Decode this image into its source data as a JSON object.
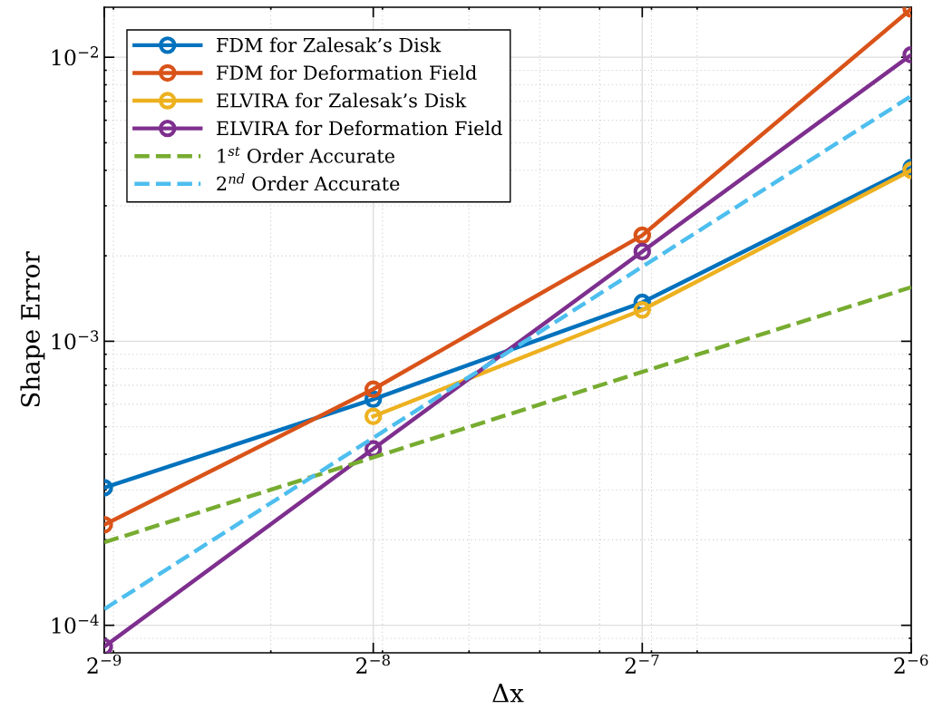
{
  "chart_data": {
    "type": "line",
    "xlabel": "Δx",
    "ylabel": "Shape Error",
    "log": "xy",
    "grid": true,
    "legend": "top left",
    "xlim": [
      0.001953125,
      0.015625
    ],
    "xticks": [
      {
        "value": 0.001953125,
        "label": "2$^{−9}$"
      },
      {
        "value": 0.00390625,
        "label": "2$^{−8}$"
      },
      {
        "value": 0.0078125,
        "label": "2$^{−7}$"
      },
      {
        "value": 0.015625,
        "label": "2$^{−6}$"
      }
    ],
    "ylim": [
      8e-05,
      0.015
    ],
    "yticks": [
      {
        "value": 0.0001,
        "label": "10$^{−4}$"
      },
      {
        "value": 0.001,
        "label": "10$^{−3}$"
      },
      {
        "value": 0.01,
        "label": "10$^{−2}$"
      }
    ],
    "x": [
      0.001953125,
      0.00390625,
      0.0078125,
      0.015625
    ],
    "series": [
      {
        "name": "FDM for Zalesak’s Disk",
        "color": "#0072bd",
        "marker": "circle",
        "line_style": "solid",
        "values": [
          0.000305,
          0.000625,
          0.00137,
          0.00409
        ]
      },
      {
        "name": "FDM for Deformation Field",
        "color": "#d95319",
        "marker": "circle",
        "line_style": "solid",
        "values": [
          0.000226,
          0.000678,
          0.00236,
          0.0148
        ]
      },
      {
        "name": "ELVIRA for Zalesak’s Disk",
        "color": "#edb120",
        "marker": "circle",
        "line_style": "solid",
        "values": [
          null,
          0.000544,
          0.00129,
          0.004
        ]
      },
      {
        "name": "ELVIRA for Deformation Field",
        "color": "#7e2f8e",
        "marker": "circle",
        "line_style": "solid",
        "values": [
          8.4e-05,
          0.000418,
          0.00207,
          0.0102
        ]
      },
      {
        "name": "1$^{st}$ Order Accurate",
        "color": "#77ac30",
        "marker": "none",
        "line_style": "dashed",
        "values": [
          0.000196,
          0.00039,
          0.00078,
          0.00155
        ]
      },
      {
        "name": "2$^{nd}$ Order Accurate",
        "color": "#4dbeee",
        "marker": "none",
        "line_style": "dashed",
        "values": [
          0.000114,
          0.000457,
          0.00183,
          0.0073
        ]
      }
    ]
  }
}
